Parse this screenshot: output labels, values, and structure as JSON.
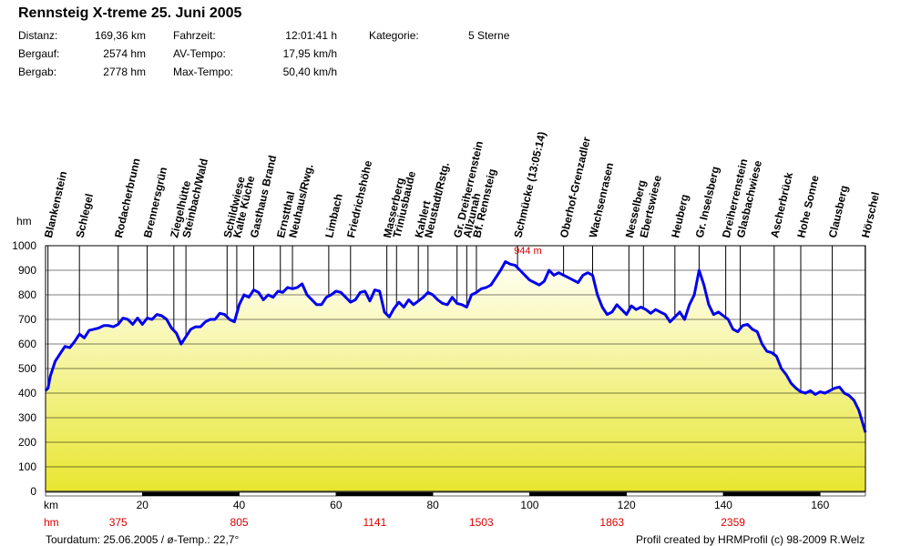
{
  "title": "Rennsteig X-treme 25. Juni 2005",
  "stats": {
    "distance_label": "Distanz:",
    "distance_value": "169,36 km",
    "climb_label": "Bergauf:",
    "climb_value": "2574 hm",
    "descent_label": "Bergab:",
    "descent_value": "2778 hm",
    "time_label": "Fahrzeit:",
    "time_value": "12:01:41 h",
    "avg_label": "AV-Tempo:",
    "avg_value": "17,95 km/h",
    "max_label": "Max-Tempo:",
    "max_value": "50,40 km/h",
    "category_label": "Kategorie:",
    "category_value": "5 Sterne"
  },
  "footer": {
    "left": "Tourdatum: 25.06.2005  /  ø-Temp.: 22,7°",
    "right": "Profil created by HRMProfil (c) 98-2009 R.Welz"
  },
  "colors": {
    "line": "#0000ee",
    "fill_top": "#fffff4",
    "fill_bottom": "#e8e630",
    "accent": "#dd0000"
  },
  "chart_data": {
    "type": "area",
    "ylabel": "hm",
    "xlabel": "km",
    "xlim": [
      0,
      169.36
    ],
    "ylim": [
      0,
      1000
    ],
    "yticks": [
      0,
      100,
      200,
      300,
      400,
      500,
      600,
      700,
      800,
      900,
      1000
    ],
    "xticks": [
      20,
      40,
      60,
      80,
      100,
      120,
      140,
      160
    ],
    "cumulative_climb_label": "hm",
    "cumulative_climb": [
      {
        "km": 15,
        "hm": "375"
      },
      {
        "km": 40,
        "hm": "805"
      },
      {
        "km": 68,
        "hm": "1141"
      },
      {
        "km": 90,
        "hm": "1503"
      },
      {
        "km": 117,
        "hm": "1863"
      },
      {
        "km": 142,
        "hm": "2359"
      }
    ],
    "max_annotation": {
      "km": 100,
      "value": 944,
      "label": "944 m"
    },
    "waypoints": [
      {
        "name": "Blankenstein",
        "km": 0.5
      },
      {
        "name": "Schlegel",
        "km": 7
      },
      {
        "name": "Rodacherbrunn",
        "km": 15
      },
      {
        "name": "Brennersgrün",
        "km": 21
      },
      {
        "name": "Ziegelhütte",
        "km": 26.5
      },
      {
        "name": "Steinbach/Wald",
        "km": 29
      },
      {
        "name": "Schildwiese",
        "km": 37.5
      },
      {
        "name": "Kalte Küche",
        "km": 39.5
      },
      {
        "name": "Gasthaus Brand",
        "km": 43
      },
      {
        "name": "Ernstthal",
        "km": 48.5
      },
      {
        "name": "Neuhaus/Rwg.",
        "km": 51
      },
      {
        "name": "Limbach",
        "km": 58.5
      },
      {
        "name": "Friedrichshöhe",
        "km": 63
      },
      {
        "name": "Masserberg",
        "km": 70.5
      },
      {
        "name": "Triniusbaude",
        "km": 72.5
      },
      {
        "name": "Kahlert",
        "km": 77
      },
      {
        "name": "Neustadt/Rstg.",
        "km": 79
      },
      {
        "name": "Gr. Dreiherrenstein",
        "km": 85
      },
      {
        "name": "Allzunah",
        "km": 87
      },
      {
        "name": "Bf. Rennsteig",
        "km": 89
      },
      {
        "name": "Schmücke (13:05:14)",
        "km": 97.5
      },
      {
        "name": "Oberhof-Grenzadler",
        "km": 107
      },
      {
        "name": "Wachsenrasen",
        "km": 113
      },
      {
        "name": "Nesselberg",
        "km": 120.5
      },
      {
        "name": "Ebertswiese",
        "km": 123.5
      },
      {
        "name": "Heuberg",
        "km": 130
      },
      {
        "name": "Gr. Inselsberg",
        "km": 135
      },
      {
        "name": "Dreiherrenstein",
        "km": 140.5
      },
      {
        "name": "Glasbachwiese",
        "km": 143.5
      },
      {
        "name": "Ascherbrück",
        "km": 150.5
      },
      {
        "name": "Hohe Sonne",
        "km": 156
      },
      {
        "name": "Clausberg",
        "km": 162.5
      },
      {
        "name": "Hörschel",
        "km": 169.3
      }
    ],
    "profile_x": [
      0,
      0.5,
      1,
      2,
      3,
      4,
      5,
      6,
      7,
      8,
      9,
      10,
      11,
      12,
      13,
      14,
      15,
      16,
      17,
      18,
      19,
      20,
      21,
      22,
      23,
      24,
      25,
      26,
      27,
      28,
      29,
      30,
      31,
      32,
      33,
      34,
      35,
      36,
      37,
      38,
      39,
      40,
      41,
      42,
      43,
      44,
      45,
      46,
      47,
      48,
      49,
      50,
      51,
      52,
      53,
      54,
      55,
      56,
      57,
      58,
      59,
      60,
      61,
      62,
      63,
      64,
      65,
      66,
      67,
      68,
      69,
      70,
      71,
      72,
      73,
      74,
      75,
      76,
      77,
      78,
      79,
      80,
      81,
      82,
      83,
      84,
      85,
      86,
      87,
      88,
      89,
      90,
      91,
      92,
      93,
      94,
      95,
      96,
      97,
      98,
      99,
      100,
      101,
      102,
      103,
      104,
      105,
      106,
      107,
      108,
      109,
      110,
      111,
      112,
      113,
      114,
      115,
      116,
      117,
      118,
      119,
      120,
      121,
      122,
      123,
      124,
      125,
      126,
      127,
      128,
      129,
      130,
      131,
      132,
      133,
      134,
      135,
      136,
      137,
      138,
      139,
      140,
      141,
      142,
      143,
      144,
      145,
      146,
      147,
      148,
      149,
      150,
      151,
      152,
      153,
      154,
      155,
      156,
      157,
      158,
      159,
      160,
      161,
      162,
      163,
      164,
      165,
      166,
      167,
      168,
      169.36
    ],
    "profile_y": [
      410,
      420,
      470,
      530,
      560,
      590,
      585,
      610,
      640,
      625,
      655,
      660,
      665,
      675,
      675,
      670,
      680,
      705,
      700,
      680,
      705,
      680,
      705,
      700,
      720,
      715,
      700,
      665,
      645,
      600,
      630,
      660,
      670,
      670,
      690,
      700,
      700,
      725,
      720,
      700,
      690,
      760,
      800,
      790,
      820,
      810,
      780,
      800,
      790,
      815,
      810,
      830,
      825,
      830,
      845,
      800,
      780,
      760,
      760,
      790,
      800,
      815,
      810,
      790,
      770,
      780,
      810,
      815,
      775,
      820,
      815,
      730,
      710,
      745,
      770,
      750,
      780,
      760,
      775,
      790,
      810,
      800,
      780,
      765,
      760,
      790,
      765,
      760,
      750,
      800,
      810,
      825,
      830,
      840,
      870,
      900,
      935,
      925,
      920,
      900,
      880,
      860,
      850,
      840,
      855,
      900,
      880,
      890,
      880,
      870,
      860,
      850,
      880,
      890,
      880,
      800,
      750,
      720,
      730,
      760,
      740,
      720,
      755,
      740,
      750,
      740,
      725,
      740,
      730,
      720,
      690,
      710,
      730,
      700,
      760,
      800,
      900,
      840,
      760,
      720,
      730,
      715,
      700,
      660,
      650,
      675,
      680,
      660,
      650,
      600,
      570,
      565,
      550,
      500,
      475,
      440,
      420,
      405,
      400,
      410,
      395,
      405,
      400,
      410,
      420,
      425,
      400,
      390,
      370,
      330,
      240,
      215
    ]
  }
}
